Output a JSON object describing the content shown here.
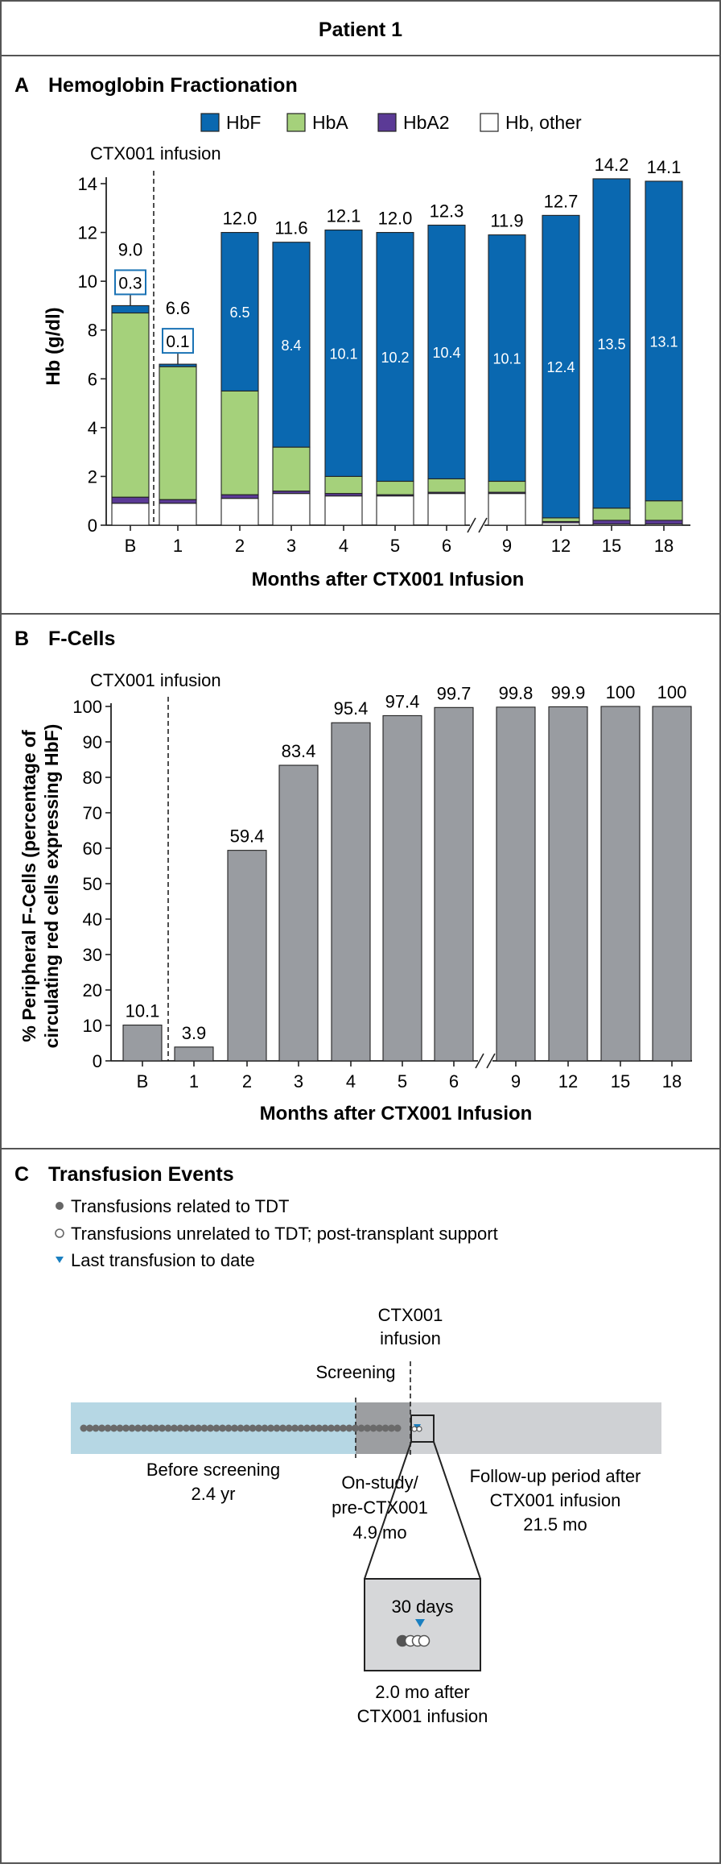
{
  "header": {
    "title": "Patient 1"
  },
  "chart_data": [
    {
      "panel": "A",
      "title": "Hemoglobin Fractionation",
      "type": "bar",
      "stacked": true,
      "xlabel": "Months after CTX001 Infusion",
      "ylabel": "Hb (g/dl)",
      "ylim": [
        0,
        14
      ],
      "yticks": [
        0,
        2,
        4,
        6,
        8,
        10,
        12,
        14
      ],
      "categories": [
        "B",
        "1",
        "2",
        "3",
        "4",
        "5",
        "6",
        "9",
        "12",
        "15",
        "18"
      ],
      "axis_break_after": "6",
      "infusion_label": "CTX001 infusion",
      "series": [
        {
          "name": "Hb, other",
          "color": "#ffffff",
          "values": [
            0.9,
            0.9,
            1.1,
            1.3,
            1.2,
            1.2,
            1.3,
            1.3,
            0.1,
            0.05,
            0.05
          ]
        },
        {
          "name": "HbA2",
          "color": "#5b3a96",
          "values": [
            0.25,
            0.15,
            0.15,
            0.1,
            0.1,
            0.05,
            0.05,
            0.05,
            0.05,
            0.15,
            0.15
          ]
        },
        {
          "name": "HbA",
          "color": "#a5d17b",
          "values": [
            7.55,
            5.45,
            4.25,
            1.8,
            0.7,
            0.55,
            0.55,
            0.45,
            0.15,
            0.5,
            0.8
          ]
        },
        {
          "name": "HbF",
          "color": "#0a68b0",
          "values": [
            0.3,
            0.1,
            6.5,
            8.4,
            10.1,
            10.2,
            10.4,
            10.1,
            12.4,
            13.5,
            13.1
          ]
        }
      ],
      "totals": [
        "9.0",
        "6.6",
        "12.0",
        "11.6",
        "12.1",
        "12.0",
        "12.3",
        "11.9",
        "12.7",
        "14.2",
        "14.1"
      ],
      "hbf_labels": [
        "0.3",
        "0.1",
        "6.5",
        "8.4",
        "10.1",
        "10.2",
        "10.4",
        "10.1",
        "12.4",
        "13.5",
        "13.1"
      ]
    },
    {
      "panel": "B",
      "title": "F-Cells",
      "type": "bar",
      "xlabel": "Months after CTX001 Infusion",
      "ylabel_line1": "% Peripheral F-Cells (percentage of",
      "ylabel_line2": "circulating red cells expressing HbF)",
      "ylim": [
        0,
        100
      ],
      "yticks": [
        0,
        10,
        20,
        30,
        40,
        50,
        60,
        70,
        80,
        90,
        100
      ],
      "categories": [
        "B",
        "1",
        "2",
        "3",
        "4",
        "5",
        "6",
        "9",
        "12",
        "15",
        "18"
      ],
      "axis_break_after": "6",
      "infusion_label": "CTX001 infusion",
      "values": [
        10.1,
        3.9,
        59.4,
        83.4,
        95.4,
        97.4,
        99.7,
        99.8,
        99.9,
        100,
        100
      ],
      "labels": [
        "10.1",
        "3.9",
        "59.4",
        "83.4",
        "95.4",
        "97.4",
        "99.7",
        "99.8",
        "99.9",
        "100",
        "100"
      ],
      "color": "#999ca1"
    }
  ],
  "panel_c": {
    "letter": "C",
    "title": "Transfusion Events",
    "legend": [
      "Transfusions related to TDT",
      "Transfusions unrelated to TDT; post-transplant support",
      "Last transfusion to date"
    ],
    "ctx_label_1": "CTX001",
    "ctx_label_2": "infusion",
    "screening_label": "Screening",
    "before_1": "Before screening",
    "before_2": "2.4 yr",
    "onstudy_1": "On-study/",
    "onstudy_2": "pre-CTX001",
    "onstudy_3": "4.9 mo",
    "follow_1": "Follow-up period after",
    "follow_2": "CTX001 infusion",
    "follow_3": "21.5 mo",
    "zoom_label": "30 days",
    "after_1": "2.0 mo after",
    "after_2": "CTX001 infusion",
    "colors": {
      "before": "#b6d7e4",
      "onstudy": "#9c9ea1",
      "followup": "#cfd1d4",
      "zoom_box": "#d6d7d9",
      "marker": "#1a7fc0"
    }
  }
}
